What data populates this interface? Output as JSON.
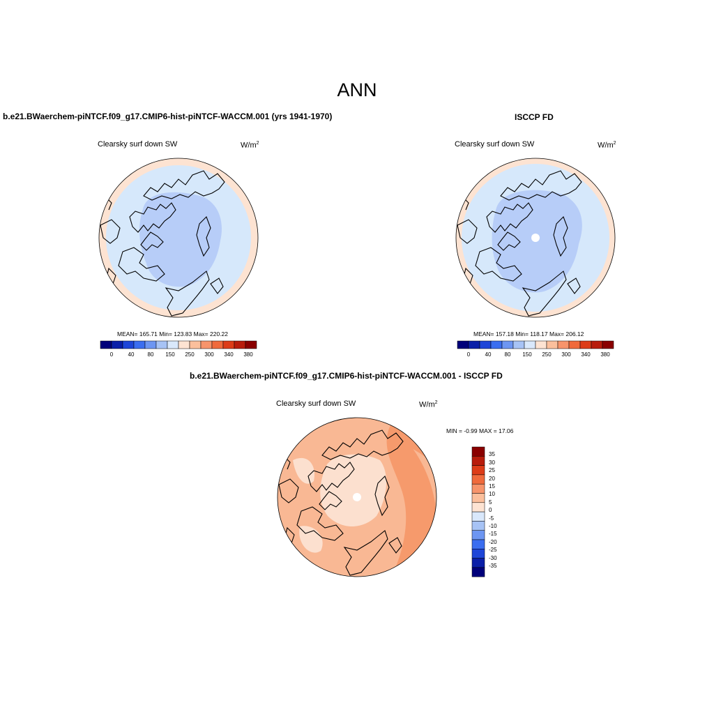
{
  "figure_title": "ANN",
  "panels": [
    {
      "title": "b.e21.BWaerchem-piNTCF.f09_g17.CMIP6-hist-piNTCF-WACCM.001 (yrs 1941-1970)",
      "variable": "Clearsky surf down SW",
      "units_base": "W/m",
      "units_exp": "2",
      "stats": "MEAN= 165.71  Min= 123.83  Max= 220.22"
    },
    {
      "title": "ISCCP FD",
      "variable": "Clearsky surf down SW",
      "units_base": "W/m",
      "units_exp": "2",
      "stats": "MEAN= 157.18  Min= 118.17  Max= 206.12"
    },
    {
      "title": "b.e21.BWaerchem-piNTCF.f09_g17.CMIP6-hist-piNTCF-WACCM.001 - ISCCP FD",
      "variable": "Clearsky surf down SW",
      "units_base": "W/m",
      "units_exp": "2",
      "stats": "MIN =  -0.99 MAX =  17.06"
    }
  ],
  "colorbar_abs": {
    "colors": [
      "#00007a",
      "#0a1fa8",
      "#1e46d8",
      "#3b6ef0",
      "#6d96f2",
      "#a7c3f5",
      "#d9e8fb",
      "#fde3d2",
      "#fbbf9c",
      "#f7946b",
      "#f06a3c",
      "#dd3c18",
      "#b81c0c",
      "#8a0000"
    ],
    "labels": [
      "0",
      "40",
      "80",
      "150",
      "250",
      "300",
      "340",
      "380"
    ]
  },
  "colorbar_diff": {
    "colors": [
      "#8a0000",
      "#b81c0c",
      "#dd3c18",
      "#f06a3c",
      "#f7946b",
      "#fbbf9c",
      "#fde3d2",
      "#d9e8fb",
      "#a7c3f5",
      "#6d96f2",
      "#3b6ef0",
      "#1e46d8",
      "#0a1fa8",
      "#00007a"
    ],
    "labels": [
      "35",
      "30",
      "25",
      "20",
      "15",
      "10",
      "5",
      "0",
      "-5",
      "-10",
      "-15",
      "-20",
      "-25",
      "-30",
      "-35"
    ]
  },
  "colors": {
    "ocean_light": "#d6e8fb",
    "arctic_blue": "#b7cdf8",
    "edge_peach": "#fde3d2",
    "diff_light": "#fce0cf",
    "diff_mid": "#f9b894",
    "diff_strong": "#f69a6c"
  }
}
